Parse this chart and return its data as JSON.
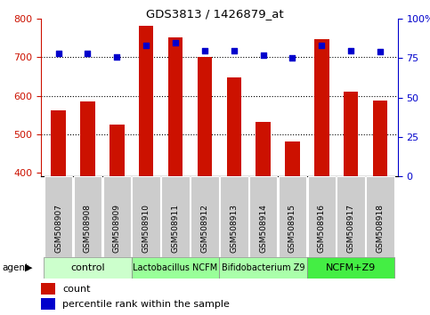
{
  "title": "GDS3813 / 1426879_at",
  "samples": [
    "GSM508907",
    "GSM508908",
    "GSM508909",
    "GSM508910",
    "GSM508911",
    "GSM508912",
    "GSM508913",
    "GSM508914",
    "GSM508915",
    "GSM508916",
    "GSM508917",
    "GSM508918"
  ],
  "count_values": [
    563,
    585,
    525,
    782,
    752,
    700,
    648,
    532,
    482,
    748,
    610,
    587
  ],
  "percentile_values": [
    78,
    78,
    76,
    83,
    85,
    80,
    80,
    77,
    75,
    83,
    80,
    79
  ],
  "bar_color": "#CC1100",
  "dot_color": "#0000CC",
  "ylim_left": [
    390,
    800
  ],
  "ylim_right": [
    0,
    100
  ],
  "yticks_left": [
    400,
    500,
    600,
    700,
    800
  ],
  "yticks_right": [
    0,
    25,
    50,
    75,
    100
  ],
  "grid_values": [
    500,
    600,
    700
  ],
  "groups": [
    {
      "label": "control",
      "start": 0,
      "end": 3,
      "color": "#CCFFCC"
    },
    {
      "label": "Lactobacillus NCFM",
      "start": 3,
      "end": 6,
      "color": "#99FF99"
    },
    {
      "label": "Bifidobacterium Z9",
      "start": 6,
      "end": 9,
      "color": "#AAFFAA"
    },
    {
      "label": "NCFM+Z9",
      "start": 9,
      "end": 12,
      "color": "#44EE44"
    }
  ],
  "agent_label": "agent",
  "legend_count_label": "count",
  "legend_pct_label": "percentile rank within the sample",
  "tick_label_color_left": "#CC1100",
  "tick_label_color_right": "#0000CC",
  "sample_box_color": "#CCCCCC",
  "bar_width": 0.5
}
